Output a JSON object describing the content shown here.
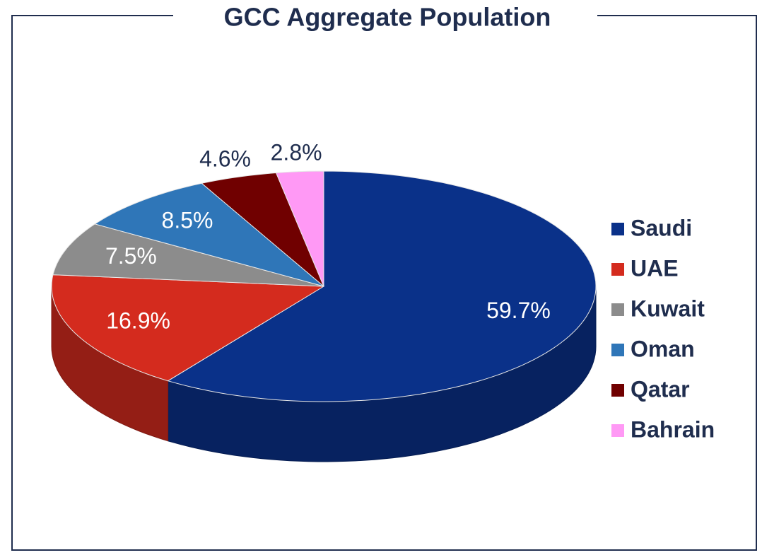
{
  "chart_data": {
    "type": "pie",
    "title": "GCC Aggregate Population",
    "categories": [
      "Saudi",
      "UAE",
      "Kuwait",
      "Oman",
      "Qatar",
      "Bahrain"
    ],
    "values": [
      59.7,
      16.9,
      7.5,
      8.5,
      4.6,
      2.8
    ],
    "value_labels": [
      "59.7%",
      "16.9%",
      "7.5%",
      "8.5%",
      "4.6%",
      "2.8%"
    ],
    "colors": [
      "#0a3189",
      "#d42b1e",
      "#8c8c8c",
      "#2f76b8",
      "#700000",
      "#ff99f5"
    ],
    "legend": "right"
  }
}
